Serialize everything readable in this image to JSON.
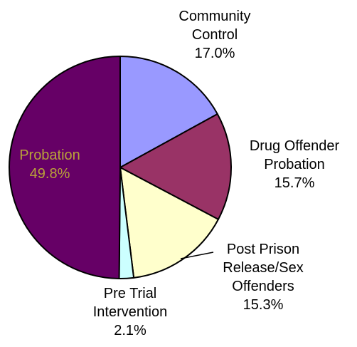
{
  "chart_data": {
    "type": "pie",
    "title": "",
    "slices": [
      {
        "label_lines": [
          "Community",
          "Control"
        ],
        "percent_label": "17.0%",
        "value": 17.0,
        "color": "#9999ff"
      },
      {
        "label_lines": [
          "Drug Offender",
          "Probation"
        ],
        "percent_label": "15.7%",
        "value": 15.7,
        "color": "#993366"
      },
      {
        "label_lines": [
          "Post Prison",
          "Release/Sex",
          "Offenders"
        ],
        "percent_label": "15.3%",
        "value": 15.3,
        "color": "#ffffcc"
      },
      {
        "label_lines": [
          "Pre Trial",
          "Intervention"
        ],
        "percent_label": "2.1%",
        "value": 2.1,
        "color": "#ccffff"
      },
      {
        "label_lines": [
          "Probation"
        ],
        "percent_label": "49.8%",
        "value": 49.8,
        "color": "#660066"
      }
    ],
    "start_angle_deg": 0,
    "direction": "clockwise",
    "legend": "none",
    "label_color_inside": "#b9a23a",
    "label_color_outside": "#000000"
  }
}
